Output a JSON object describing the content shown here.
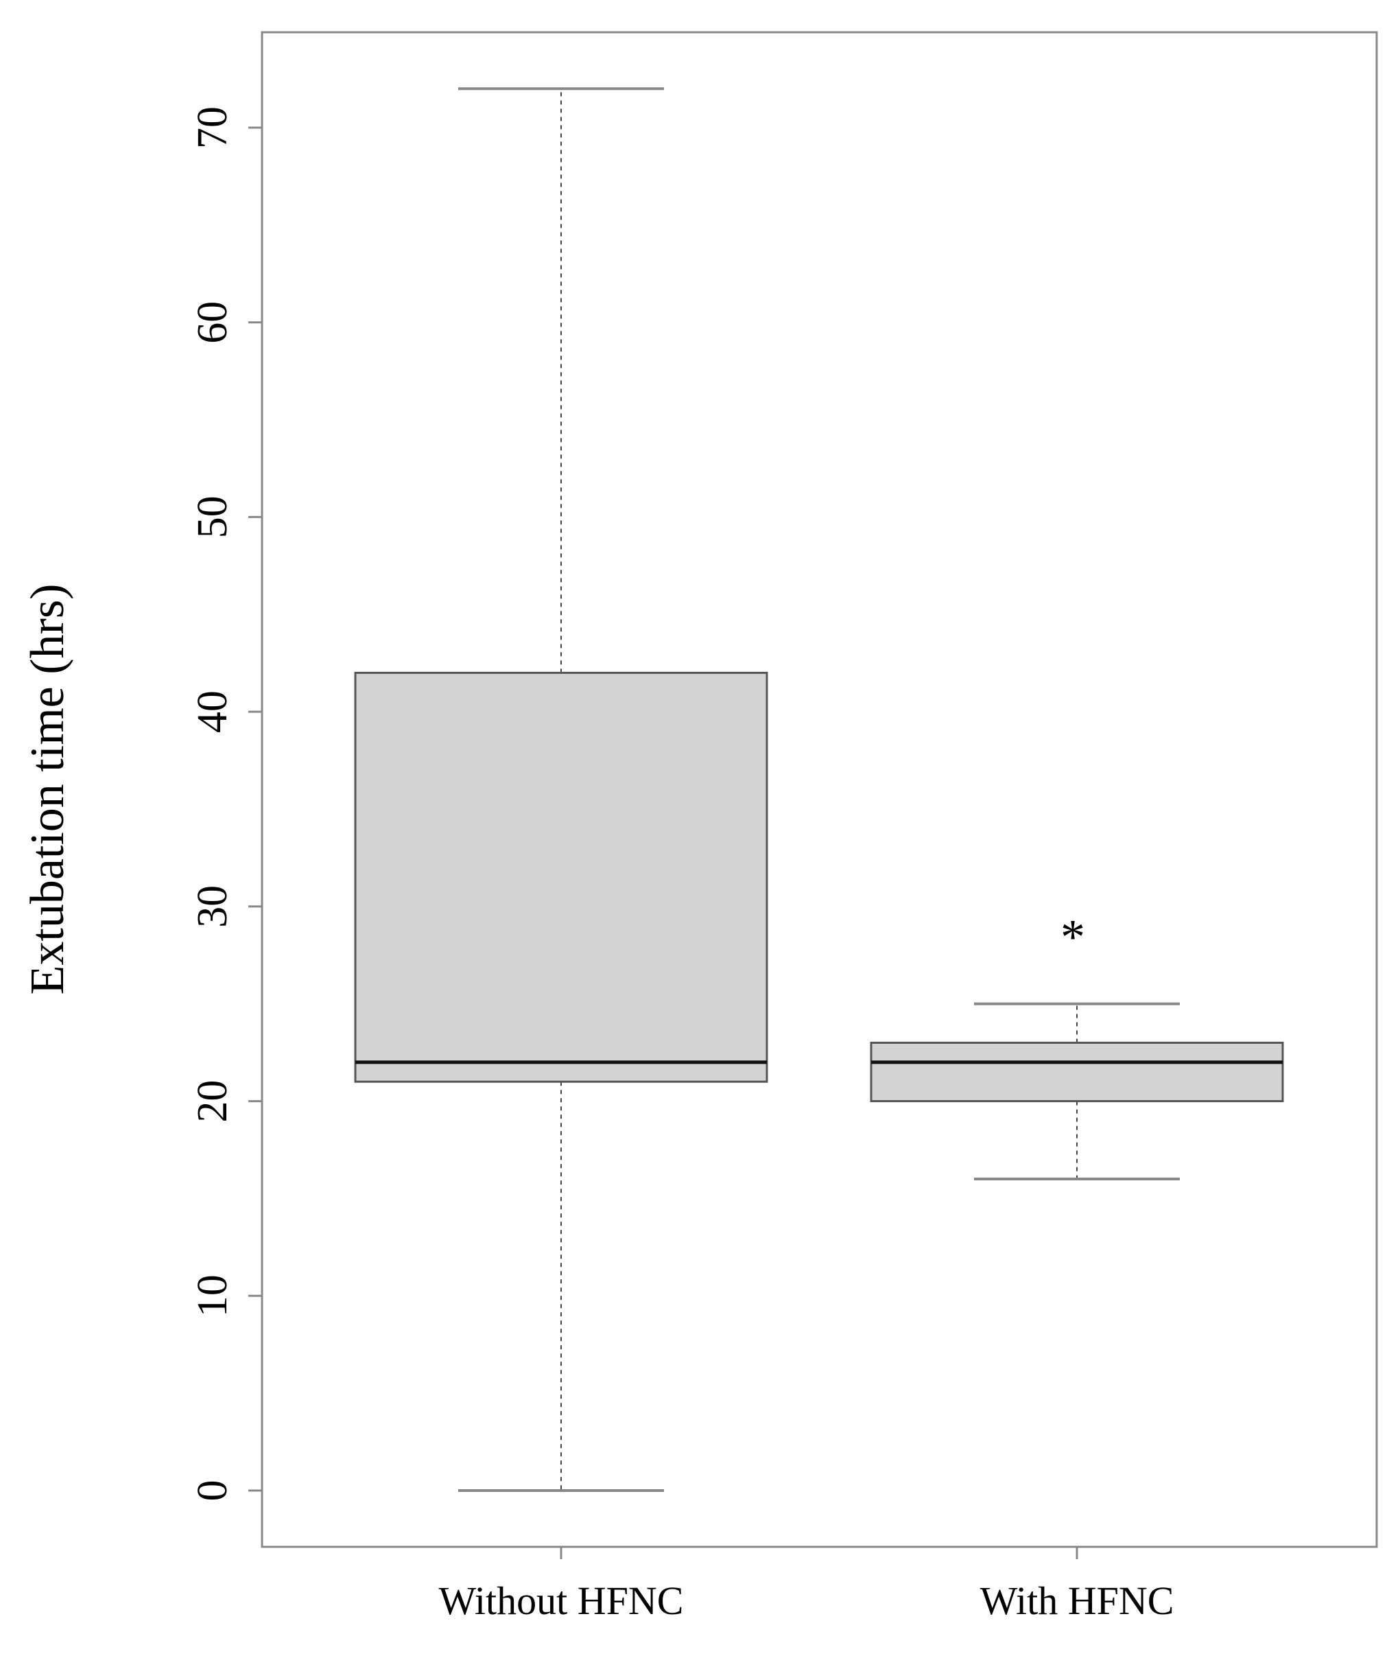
{
  "chart_data": {
    "type": "boxplot",
    "title": "",
    "xlabel": "",
    "ylabel": "Extubation time (hrs)",
    "ylim": [
      -3,
      75
    ],
    "yticks": [
      0,
      10,
      20,
      30,
      40,
      50,
      60,
      70
    ],
    "grid": false,
    "categories": [
      "Without HFNC",
      "With HFNC"
    ],
    "boxes": [
      {
        "label": "Without HFNC",
        "whisker_low": 0,
        "q1": 21,
        "median": 22,
        "q3": 42,
        "whisker_high": 72,
        "marker": ""
      },
      {
        "label": "With HFNC",
        "whisker_low": 16,
        "q1": 20,
        "median": 22,
        "q3": 23,
        "whisker_high": 25,
        "marker": "*",
        "marker_value": 28.5
      }
    ],
    "colors": {
      "box_fill": "#d3d3d3",
      "box_stroke": "#555555",
      "whisker": "#888888",
      "median": "#111111",
      "frame": "#888888"
    }
  }
}
